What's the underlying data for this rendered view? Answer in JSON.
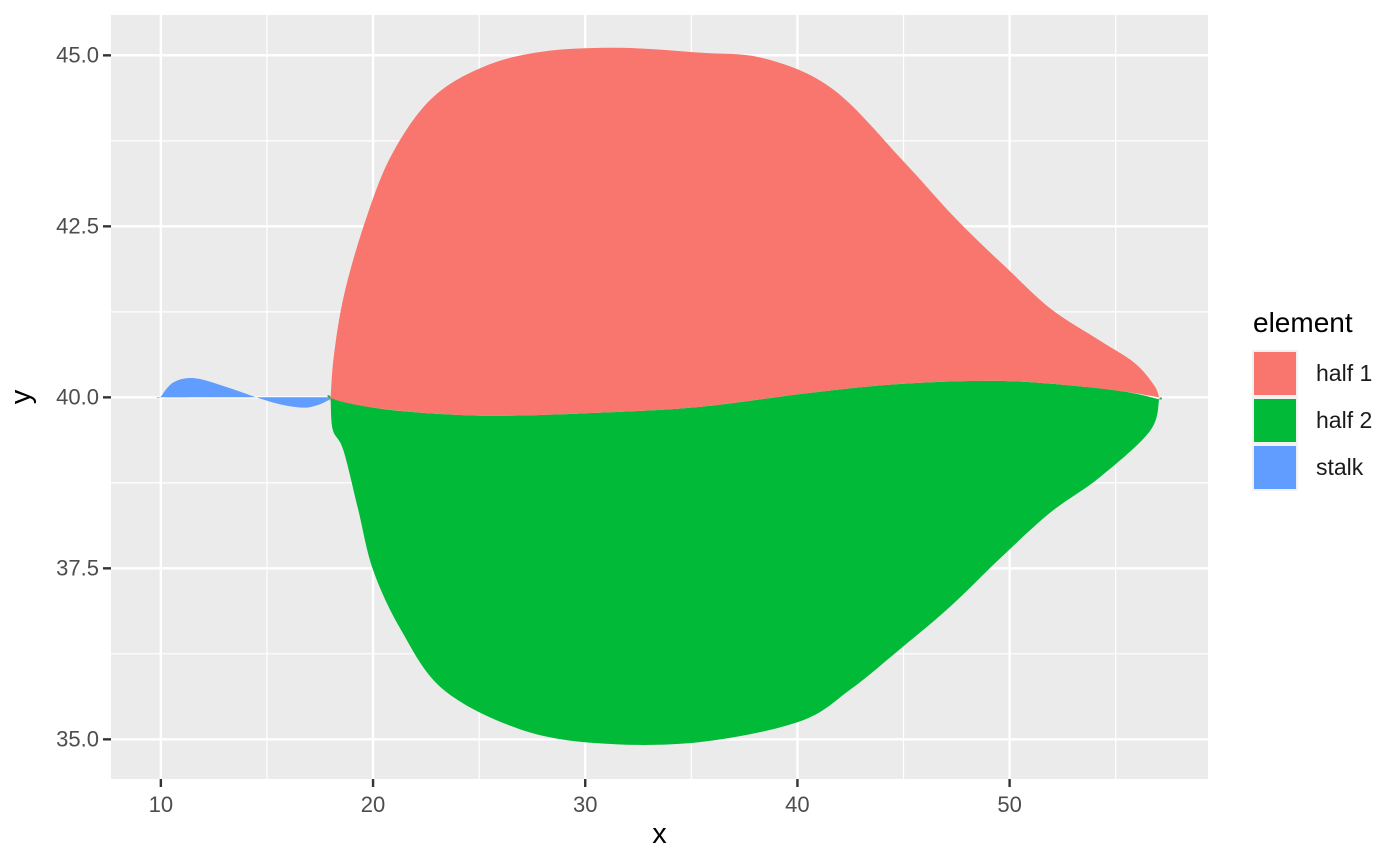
{
  "chart_data": {
    "type": "area",
    "title": "",
    "xlabel": "x",
    "ylabel": "y",
    "grid": true,
    "legend_position": "right",
    "colors": {
      "panel_background": "#EBEBEB",
      "grid": "#FFFFFF",
      "tick_mark": "#333333",
      "axis_text": "#4D4D4D",
      "axis_title": "#000000",
      "legend_key_background": "#F2F2F2",
      "figure_background": "#FFFFFF"
    },
    "x_axis": {
      "range": [
        7.65,
        59.35
      ],
      "ticks": [
        10,
        20,
        30,
        40,
        50
      ],
      "tick_labels": [
        "10",
        "20",
        "30",
        "40",
        "50"
      ],
      "minor_ticks": [
        15,
        25,
        35,
        45,
        55
      ]
    },
    "y_axis": {
      "range": [
        34.42,
        45.59
      ],
      "ticks": [
        35.0,
        37.5,
        40.0,
        42.5,
        45.0
      ],
      "tick_labels": [
        "35.0",
        "37.5",
        "40.0",
        "42.5",
        "45.0"
      ],
      "minor_ticks": [
        36.25,
        38.75,
        41.25,
        43.75
      ]
    },
    "legend": {
      "title": "element",
      "items": [
        {
          "label": "half 1",
          "color": "#F8766D"
        },
        {
          "label": "half 2",
          "color": "#00BA38"
        },
        {
          "label": "stalk",
          "color": "#619CFF"
        }
      ]
    },
    "series": [
      {
        "name": "stalk",
        "color": "#619CFF",
        "points": [
          [
            10.0,
            40.01
          ],
          [
            10.6,
            40.22
          ],
          [
            11.6,
            40.28
          ],
          [
            13.0,
            40.16
          ],
          [
            14.5,
            40.0
          ],
          [
            15.6,
            39.9
          ],
          [
            16.75,
            39.85
          ],
          [
            17.5,
            39.9
          ],
          [
            18.0,
            39.98
          ],
          [
            18.0,
            40.0
          ],
          [
            16.0,
            40.0
          ],
          [
            14.5,
            40.0
          ],
          [
            12.5,
            40.0
          ],
          [
            10.0,
            40.0
          ]
        ]
      },
      {
        "name": "half 2",
        "color": "#00BA38",
        "points": [
          [
            18.0,
            39.99
          ],
          [
            18.0,
            39.99
          ],
          [
            20.0,
            39.85
          ],
          [
            22.5,
            39.77
          ],
          [
            26.0,
            39.73
          ],
          [
            31.0,
            39.78
          ],
          [
            35.4,
            39.86
          ],
          [
            40.7,
            40.07
          ],
          [
            45.0,
            40.2
          ],
          [
            49.5,
            40.24
          ],
          [
            53.0,
            40.17
          ],
          [
            55.5,
            40.08
          ],
          [
            57.05,
            39.97
          ],
          [
            57.05,
            39.97
          ],
          [
            56.6,
            39.5
          ],
          [
            54.2,
            38.82
          ],
          [
            51.9,
            38.31
          ],
          [
            49.5,
            37.63
          ],
          [
            47.2,
            36.94
          ],
          [
            44.8,
            36.31
          ],
          [
            42.5,
            35.73
          ],
          [
            40.1,
            35.26
          ],
          [
            35.4,
            34.96
          ],
          [
            30.7,
            34.94
          ],
          [
            26.9,
            35.15
          ],
          [
            23.3,
            35.73
          ],
          [
            21.3,
            36.61
          ],
          [
            20.0,
            37.48
          ],
          [
            19.3,
            38.36
          ],
          [
            18.6,
            39.23
          ],
          [
            18.1,
            39.53
          ]
        ]
      },
      {
        "name": "half 1",
        "color": "#F8766D",
        "points": [
          [
            18.0,
            39.99
          ],
          [
            18.0,
            39.99
          ],
          [
            18.15,
            40.6
          ],
          [
            18.6,
            41.45
          ],
          [
            19.5,
            42.45
          ],
          [
            20.8,
            43.5
          ],
          [
            22.7,
            44.35
          ],
          [
            25.1,
            44.82
          ],
          [
            27.9,
            45.05
          ],
          [
            31.5,
            45.11
          ],
          [
            35.4,
            45.04
          ],
          [
            38.5,
            44.95
          ],
          [
            41.7,
            44.5
          ],
          [
            45.0,
            43.45
          ],
          [
            47.5,
            42.6
          ],
          [
            50.0,
            41.85
          ],
          [
            52.0,
            41.28
          ],
          [
            54.2,
            40.84
          ],
          [
            55.9,
            40.5
          ],
          [
            56.8,
            40.18
          ],
          [
            57.05,
            40.0
          ],
          [
            57.05,
            40.0
          ],
          [
            55.5,
            40.08
          ],
          [
            53.0,
            40.17
          ],
          [
            49.5,
            40.24
          ],
          [
            45.0,
            40.2
          ],
          [
            40.7,
            40.07
          ],
          [
            35.4,
            39.86
          ],
          [
            31.0,
            39.78
          ],
          [
            26.0,
            39.73
          ],
          [
            22.5,
            39.77
          ],
          [
            20.0,
            39.85
          ],
          [
            18.6,
            39.93
          ]
        ]
      }
    ]
  }
}
